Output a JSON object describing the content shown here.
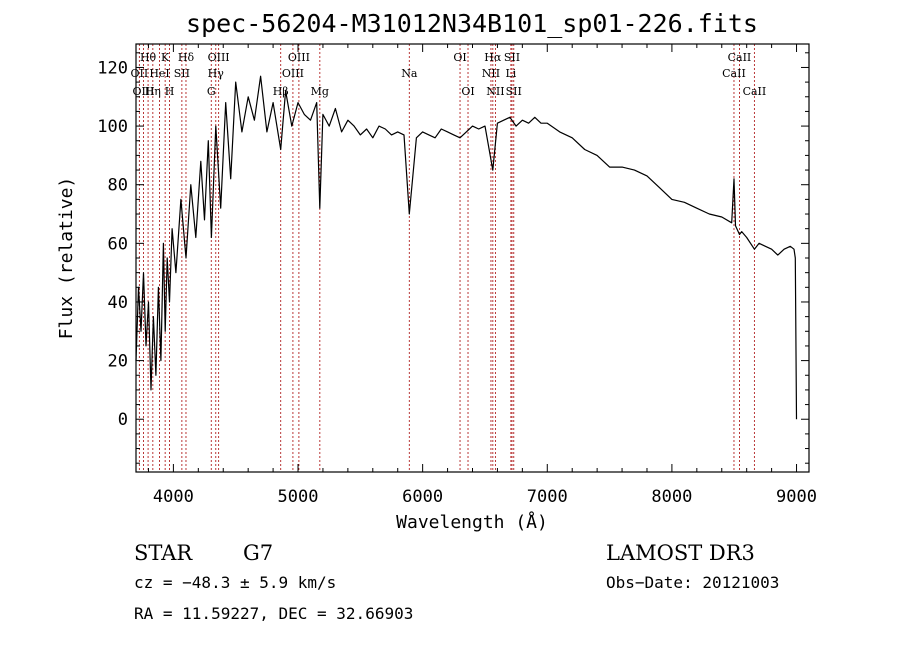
{
  "chart_data": {
    "type": "line",
    "title": "spec-56204-M31012N34B101_sp01-226.fits",
    "xlabel": "Wavelength (Å)",
    "ylabel": "Flux (relative)",
    "xlim": [
      3700,
      9100
    ],
    "ylim": [
      -18,
      128
    ],
    "xticks": [
      4000,
      5000,
      6000,
      7000,
      8000,
      9000
    ],
    "yticks": [
      0,
      20,
      40,
      60,
      80,
      100,
      120
    ],
    "series": [
      {
        "name": "flux",
        "x": [
          3700,
          3720,
          3740,
          3760,
          3780,
          3800,
          3820,
          3840,
          3860,
          3880,
          3900,
          3920,
          3934,
          3950,
          3969,
          3990,
          4020,
          4060,
          4101,
          4140,
          4180,
          4220,
          4250,
          4280,
          4305,
          4340,
          4380,
          4420,
          4460,
          4500,
          4550,
          4600,
          4650,
          4700,
          4750,
          4800,
          4861,
          4900,
          4950,
          5000,
          5050,
          5100,
          5150,
          5175,
          5200,
          5250,
          5300,
          5350,
          5400,
          5450,
          5500,
          5550,
          5600,
          5650,
          5700,
          5750,
          5800,
          5850,
          5893,
          5950,
          6000,
          6050,
          6100,
          6150,
          6200,
          6250,
          6300,
          6350,
          6400,
          6450,
          6500,
          6563,
          6600,
          6650,
          6700,
          6750,
          6800,
          6850,
          6900,
          6950,
          7000,
          7100,
          7200,
          7300,
          7400,
          7500,
          7600,
          7700,
          7800,
          7900,
          8000,
          8100,
          8200,
          8300,
          8400,
          8480,
          8498,
          8510,
          8542,
          8560,
          8600,
          8662,
          8700,
          8750,
          8800,
          8850,
          8900,
          8950,
          8980,
          8990,
          9000
        ],
        "y": [
          20,
          45,
          30,
          50,
          25,
          40,
          10,
          35,
          15,
          45,
          20,
          60,
          30,
          55,
          40,
          65,
          50,
          75,
          55,
          80,
          62,
          88,
          68,
          95,
          62,
          100,
          72,
          108,
          82,
          115,
          98,
          110,
          102,
          117,
          98,
          108,
          92,
          112,
          100,
          108,
          104,
          102,
          108,
          72,
          104,
          100,
          106,
          98,
          102,
          100,
          97,
          99,
          96,
          100,
          99,
          97,
          98,
          97,
          70,
          96,
          98,
          97,
          96,
          99,
          98,
          97,
          96,
          98,
          100,
          99,
          100,
          85,
          101,
          102,
          103,
          100,
          102,
          101,
          103,
          101,
          101,
          98,
          96,
          92,
          90,
          86,
          86,
          85,
          83,
          79,
          75,
          74,
          72,
          70,
          69,
          67,
          82,
          66,
          63,
          64,
          62,
          58,
          60,
          59,
          58,
          56,
          58,
          59,
          58,
          55,
          0
        ]
      }
    ],
    "lines": [
      {
        "label": "Hθ",
        "x": 3797,
        "row": 1
      },
      {
        "label": "OII",
        "x": 3727,
        "row": 2
      },
      {
        "label": "OIII",
        "x": 3760,
        "row": 3
      },
      {
        "label": "HeI",
        "x": 3889,
        "row": 2
      },
      {
        "label": "Hη",
        "x": 3835,
        "row": 3
      },
      {
        "label": "K",
        "x": 3934,
        "row": 1
      },
      {
        "label": "H",
        "x": 3969,
        "row": 3
      },
      {
        "label": "SII",
        "x": 4068,
        "row": 2
      },
      {
        "label": "Hδ",
        "x": 4101,
        "row": 1
      },
      {
        "label": "OIII",
        "x": 4363,
        "row": 1
      },
      {
        "label": "Hγ",
        "x": 4340,
        "row": 2
      },
      {
        "label": "G",
        "x": 4304,
        "row": 3
      },
      {
        "label": "Hβ",
        "x": 4861,
        "row": 3
      },
      {
        "label": "OIII",
        "x": 4959,
        "row": 2
      },
      {
        "label": "OIII",
        "x": 5007,
        "row": 1
      },
      {
        "label": "Mg",
        "x": 5175,
        "row": 3
      },
      {
        "label": "Na",
        "x": 5893,
        "row": 2
      },
      {
        "label": "OI",
        "x": 6300,
        "row": 1
      },
      {
        "label": "OI",
        "x": 6364,
        "row": 3
      },
      {
        "label": "Hα",
        "x": 6563,
        "row": 1
      },
      {
        "label": "NII",
        "x": 6548,
        "row": 2
      },
      {
        "label": "NII",
        "x": 6584,
        "row": 3
      },
      {
        "label": "SII",
        "x": 6717,
        "row": 1
      },
      {
        "label": "Li",
        "x": 6708,
        "row": 2
      },
      {
        "label": "SII",
        "x": 6731,
        "row": 3
      },
      {
        "label": "CaII",
        "x": 8542,
        "row": 1
      },
      {
        "label": "CaII",
        "x": 8498,
        "row": 2
      },
      {
        "label": "CaII",
        "x": 8662,
        "row": 3
      }
    ]
  },
  "info": {
    "object_class": "STAR",
    "subclass": "G7",
    "survey": "LAMOST DR3",
    "cz": "cz = −48.3 ± 5.9 km/s",
    "obs_date": "Obs−Date: 20121003",
    "coords": "RA =  11.59227, DEC =  32.66903"
  },
  "colors": {
    "axis": "#000000",
    "spectrum": "#000000",
    "marker_line": "#b22222"
  }
}
